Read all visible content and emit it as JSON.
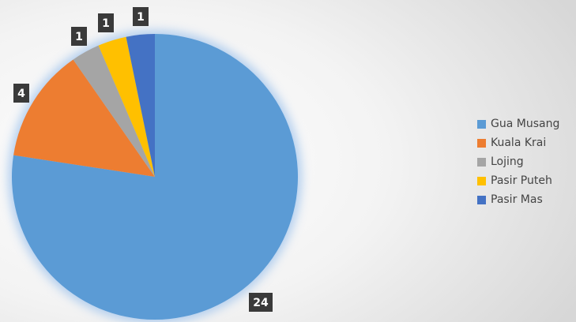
{
  "chart_data": {
    "type": "pie",
    "categories": [
      "Gua Musang",
      "Kuala Krai",
      "Lojing",
      "Pasir Puteh",
      "Pasir Mas"
    ],
    "values": [
      24,
      4,
      1,
      1,
      1
    ],
    "data_labels": [
      "24",
      "4",
      "1",
      "1",
      "1"
    ],
    "colors": [
      "#5b9bd5",
      "#ed7d31",
      "#a5a5a5",
      "#ffc000",
      "#4472c4"
    ],
    "label_box_color": "#3a3a3a",
    "legend_position": "right",
    "title": ""
  }
}
